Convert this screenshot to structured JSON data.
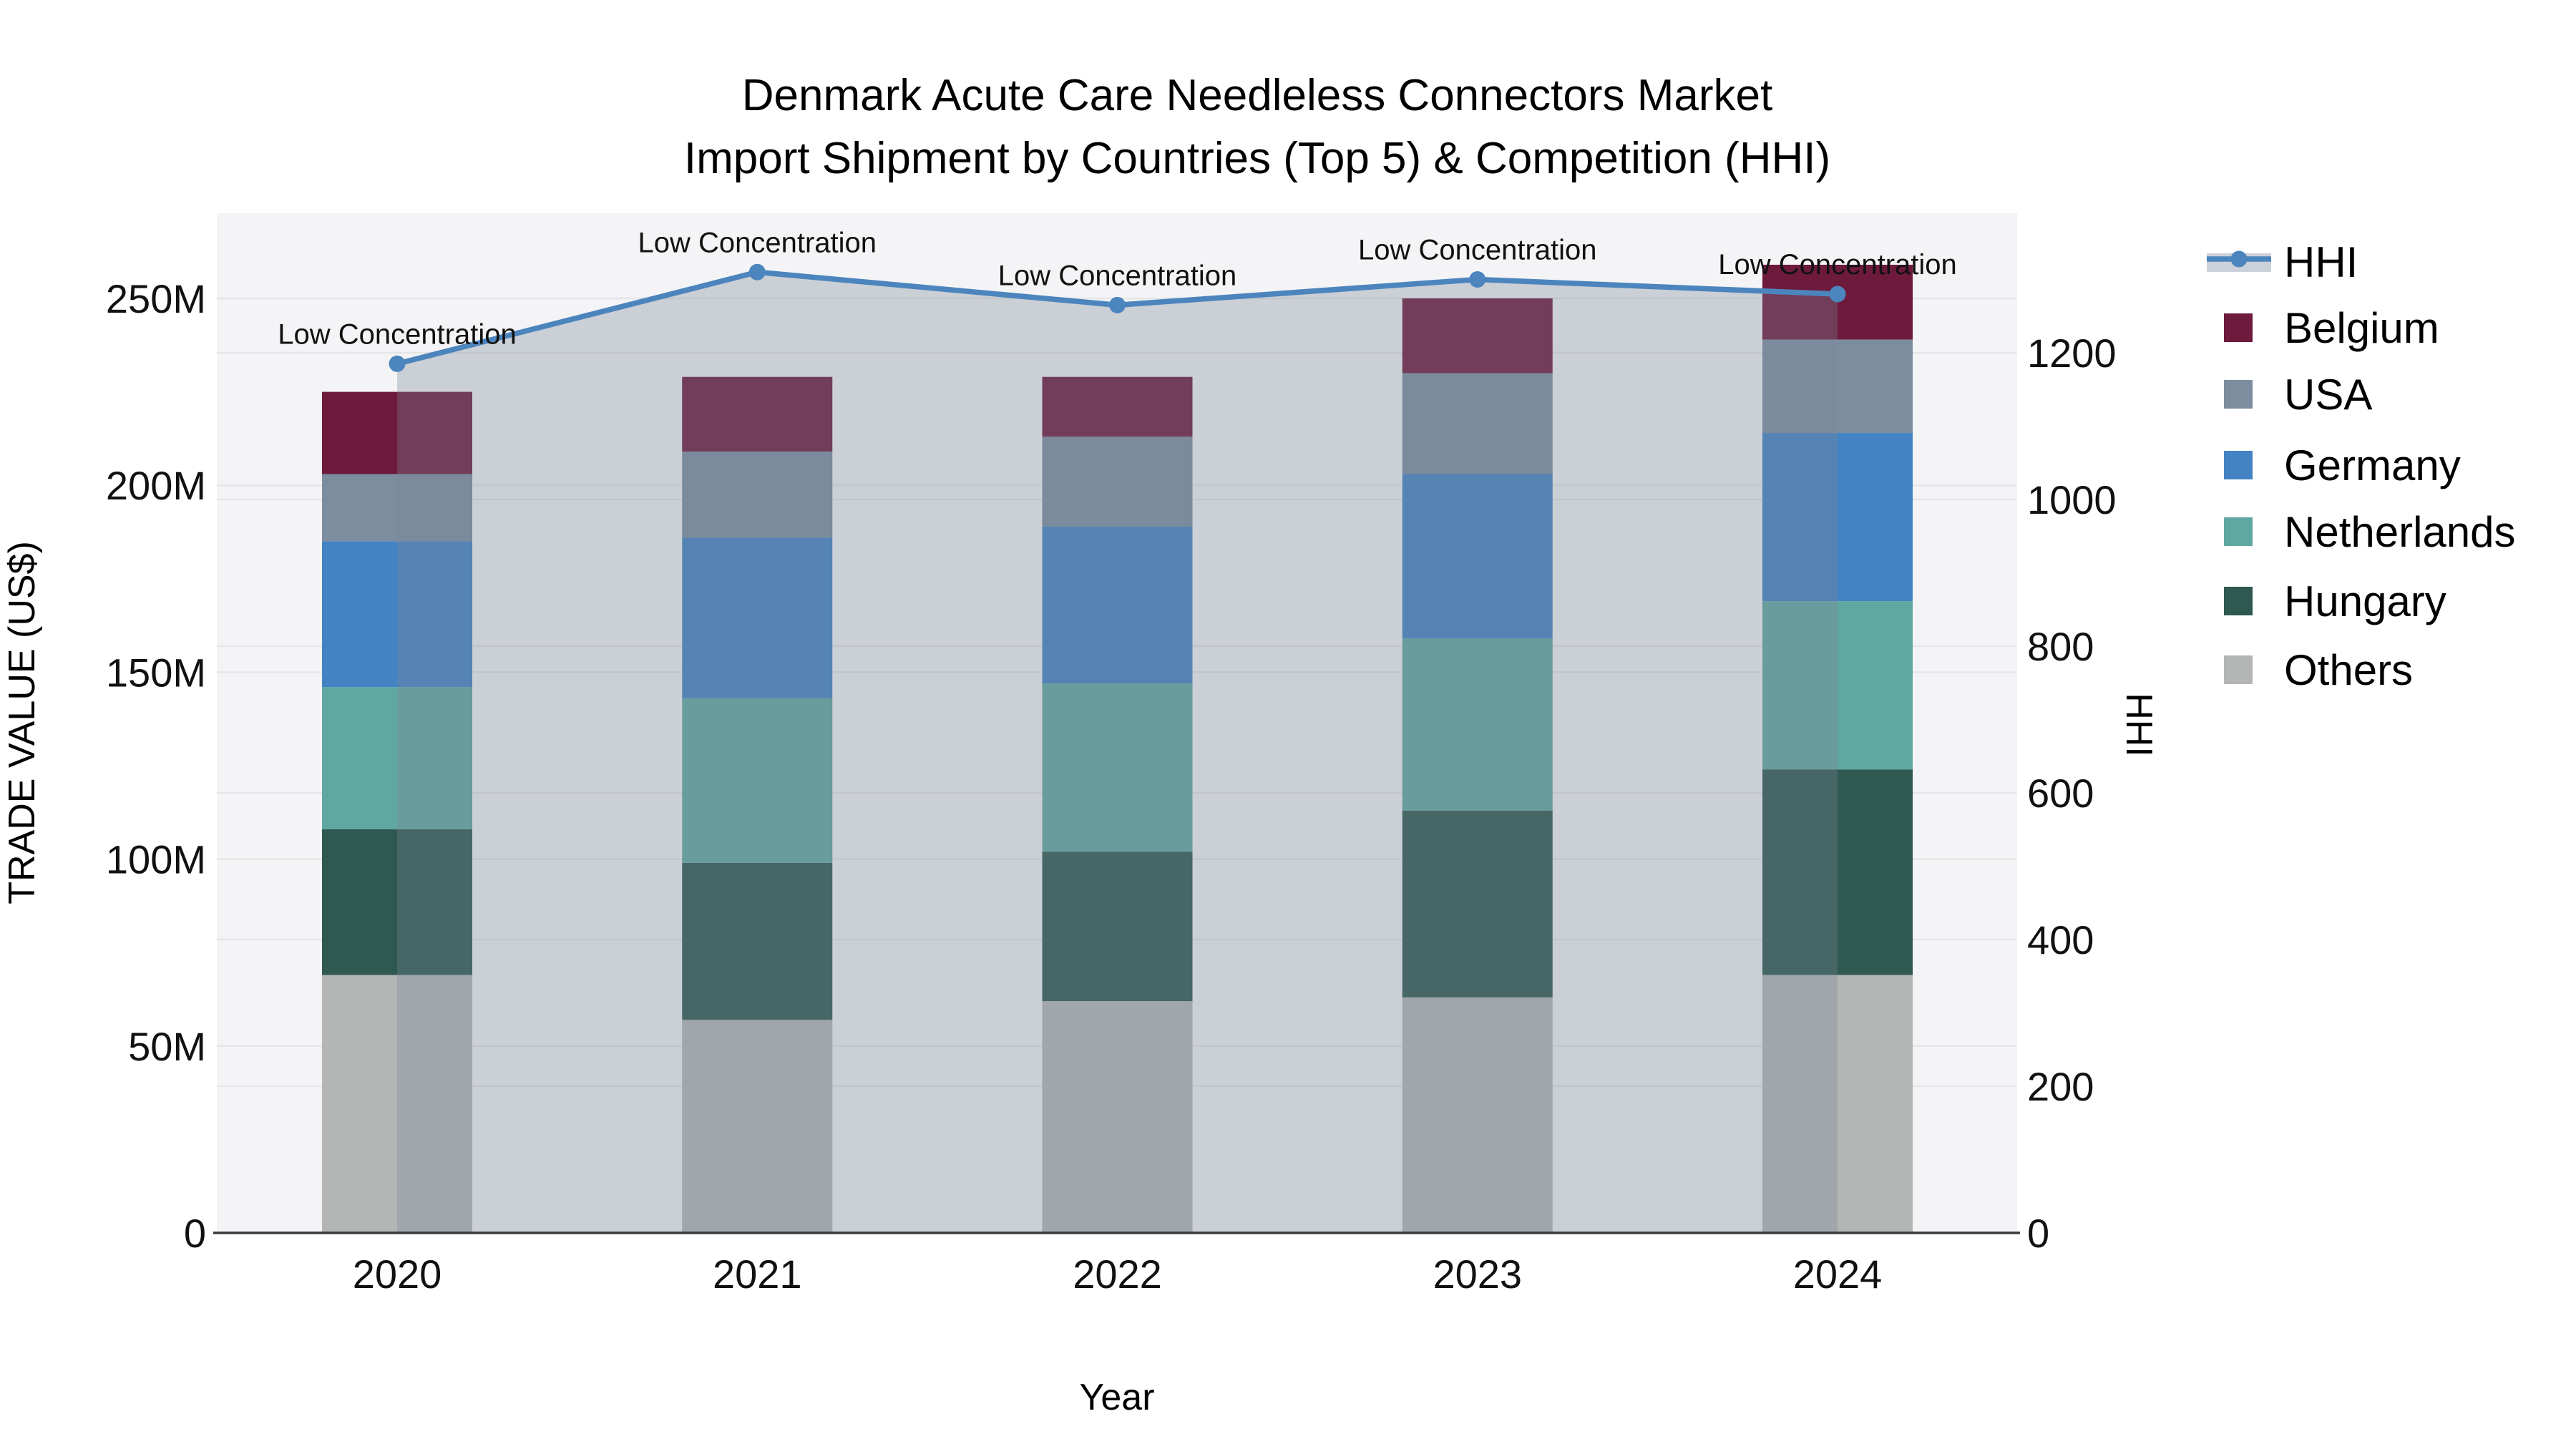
{
  "title": {
    "line1": "Denmark Acute Care Needleless Connectors Market",
    "line2": "Import Shipment by Countries (Top 5) & Competition (HHI)"
  },
  "chart_data": {
    "type": "bar",
    "subtype": "stacked-bars-with-line-overlay",
    "categories": [
      "2020",
      "2021",
      "2022",
      "2023",
      "2024"
    ],
    "unit": "US$ millions",
    "series": [
      {
        "name": "Others",
        "color": "#b4b6b5",
        "values": [
          69,
          57,
          62,
          63,
          69
        ]
      },
      {
        "name": "Hungary",
        "color": "#2f5850",
        "values": [
          39,
          42,
          40,
          50,
          55
        ]
      },
      {
        "name": "Netherlands",
        "color": "#61a7a1",
        "values": [
          38,
          44,
          45,
          46,
          45
        ]
      },
      {
        "name": "Germany",
        "color": "#4383c4",
        "values": [
          39,
          43,
          42,
          44,
          45
        ]
      },
      {
        "name": "USA",
        "color": "#7d8da0",
        "values": [
          18,
          23,
          24,
          27,
          25
        ]
      },
      {
        "name": "Belgium",
        "color": "#6d1a3c",
        "values": [
          22,
          20,
          16,
          20,
          20
        ]
      }
    ],
    "bar_totals": [
      225,
      229,
      230,
      250,
      259
    ],
    "line_series": {
      "name": "HHI",
      "color": "#4c85bd",
      "area_fill": "rgba(120,135,150,0.33)",
      "values": [
        1185,
        1310,
        1265,
        1300,
        1280
      ]
    },
    "annotations": [
      {
        "category": "2020",
        "text": "Low Concentration"
      },
      {
        "category": "2021",
        "text": "Low Concentration"
      },
      {
        "category": "2022",
        "text": "Low Concentration"
      },
      {
        "category": "2023",
        "text": "Low Concentration"
      },
      {
        "category": "2024",
        "text": "Low Concentration"
      }
    ],
    "xlabel": "Year",
    "ylabel_left": "TRADE VALUE (US$)",
    "ylabel_right": "HHI",
    "yticks_left": [
      "0",
      "50M",
      "100M",
      "150M",
      "200M",
      "250M"
    ],
    "ytick_values_left": [
      0,
      50,
      100,
      150,
      200,
      250
    ],
    "yticks_right": [
      "0",
      "200",
      "400",
      "600",
      "800",
      "1000",
      "1200"
    ],
    "ytick_values_right": [
      0,
      200,
      400,
      600,
      800,
      1000,
      1200
    ],
    "ylim_left_millions": [
      0,
      273
    ],
    "ylim_right": [
      0,
      1400
    ],
    "grid": true,
    "legend_position": "right",
    "legend_order": [
      "HHI",
      "Belgium",
      "USA",
      "Germany",
      "Netherlands",
      "Hungary",
      "Others"
    ]
  },
  "colors": {
    "page_bg": "#ffffff",
    "plot_bg": "#f4f4f6",
    "gridline": "#e6e6e8",
    "axis_line": "#3a3a3a",
    "legend_band": "#ccd1d9",
    "text": "#000000"
  }
}
